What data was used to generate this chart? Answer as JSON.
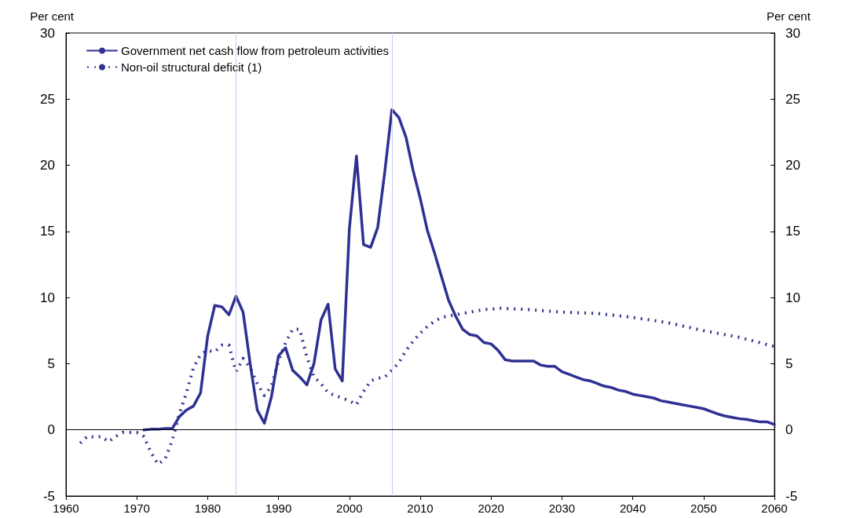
{
  "chart_data": {
    "type": "line",
    "ylabel": "Per cent",
    "y2label": "Per cent",
    "xlim": [
      1960,
      2060
    ],
    "xticks": [
      1960,
      1970,
      1980,
      1990,
      2000,
      2010,
      2020,
      2030,
      2040,
      2050,
      2060
    ],
    "ylim": [
      -5,
      30
    ],
    "yticks": [
      -5,
      0,
      5,
      10,
      15,
      20,
      25,
      30
    ],
    "y2lim": [
      -5,
      30
    ],
    "y2ticks": [
      -5,
      0,
      5,
      10,
      15,
      20,
      25,
      30
    ],
    "grid": false,
    "legend": "top left",
    "series": [
      {
        "name": "Government net cash flow from petroleum activities",
        "color": "#2e3192",
        "line_style": "solid",
        "x": [
          1971,
          1972,
          1973,
          1974,
          1975,
          1976,
          1977,
          1978,
          1979,
          1980,
          1981,
          1982,
          1983,
          1984,
          1985,
          1986,
          1987,
          1988,
          1989,
          1990,
          1991,
          1992,
          1993,
          1994,
          1995,
          1996,
          1997,
          1998,
          1999,
          2000,
          2001,
          2002,
          2003,
          2004,
          2005,
          2006,
          2007,
          2008,
          2009,
          2010,
          2011,
          2012,
          2013,
          2014,
          2015,
          2016,
          2017,
          2018,
          2019,
          2020,
          2021,
          2022,
          2023,
          2024,
          2025,
          2026,
          2027,
          2028,
          2029,
          2030,
          2031,
          2032,
          2033,
          2034,
          2035,
          2036,
          2037,
          2038,
          2039,
          2040,
          2041,
          2042,
          2043,
          2044,
          2045,
          2046,
          2047,
          2048,
          2049,
          2050,
          2051,
          2052,
          2053,
          2054,
          2055,
          2056,
          2057,
          2058,
          2059,
          2060
        ],
        "values": [
          0.0,
          0.05,
          0.05,
          0.1,
          0.1,
          1.0,
          1.5,
          1.8,
          2.8,
          7.1,
          9.4,
          9.3,
          8.7,
          10.1,
          8.9,
          5.0,
          1.5,
          0.5,
          2.5,
          5.6,
          6.2,
          4.5,
          4.0,
          3.4,
          5.0,
          8.3,
          9.5,
          4.6,
          3.7,
          15.2,
          20.7,
          14.0,
          13.8,
          15.3,
          19.5,
          24.2,
          23.6,
          22.1,
          19.6,
          17.5,
          15.1,
          13.4,
          11.6,
          9.8,
          8.6,
          7.6,
          7.2,
          7.1,
          6.6,
          6.5,
          6.0,
          5.3,
          5.2,
          5.2,
          5.2,
          5.2,
          4.9,
          4.8,
          4.8,
          4.4,
          4.2,
          4.0,
          3.8,
          3.7,
          3.5,
          3.3,
          3.2,
          3.0,
          2.9,
          2.7,
          2.6,
          2.5,
          2.4,
          2.2,
          2.1,
          2.0,
          1.9,
          1.8,
          1.7,
          1.6,
          1.4,
          1.2,
          1.05,
          0.95,
          0.85,
          0.8,
          0.7,
          0.6,
          0.6,
          0.4
        ]
      },
      {
        "name": "Non-oil structural deficit (1)",
        "color": "#2e3192",
        "line_style": "dotted",
        "x": [
          1962,
          1963,
          1964,
          1965,
          1966,
          1967,
          1968,
          1969,
          1970,
          1971,
          1972,
          1973,
          1974,
          1975,
          1976,
          1977,
          1978,
          1979,
          1980,
          1981,
          1982,
          1983,
          1984,
          1985,
          1986,
          1987,
          1988,
          1989,
          1990,
          1991,
          1992,
          1993,
          1994,
          1995,
          1996,
          1997,
          1998,
          1999,
          2000,
          2001,
          2002,
          2003,
          2004,
          2005,
          2006,
          2007,
          2008,
          2009,
          2010,
          2011,
          2012,
          2013,
          2014,
          2015,
          2016,
          2017,
          2018,
          2019,
          2020,
          2021,
          2025,
          2030,
          2035,
          2040,
          2045,
          2050,
          2055,
          2060
        ],
        "values": [
          -1.0,
          -0.5,
          -0.55,
          -0.5,
          -0.9,
          -0.5,
          -0.2,
          -0.2,
          -0.2,
          -0.5,
          -1.7,
          -2.6,
          -2.2,
          -0.8,
          1.2,
          2.8,
          4.7,
          5.7,
          6.0,
          5.9,
          6.4,
          6.4,
          4.4,
          5.4,
          4.7,
          3.5,
          2.6,
          3.3,
          5.2,
          6.6,
          7.6,
          7.6,
          5.5,
          4.0,
          3.5,
          2.8,
          2.6,
          2.4,
          2.2,
          1.9,
          2.9,
          3.7,
          3.9,
          4.0,
          4.5,
          5.1,
          6.0,
          6.7,
          7.3,
          7.8,
          8.2,
          8.5,
          8.6,
          8.7,
          8.8,
          8.9,
          9.0,
          9.1,
          9.1,
          9.2,
          9.1,
          8.9,
          8.8,
          8.5,
          8.1,
          7.5,
          7.0,
          6.3
        ]
      }
    ],
    "ref_lines": [
      {
        "axis": "x",
        "value": 1984,
        "color": "#c8c8ec"
      },
      {
        "axis": "x",
        "value": 2006,
        "color": "#c8c8ec"
      },
      {
        "axis": "y",
        "value": 0,
        "color": "#000000"
      }
    ]
  }
}
